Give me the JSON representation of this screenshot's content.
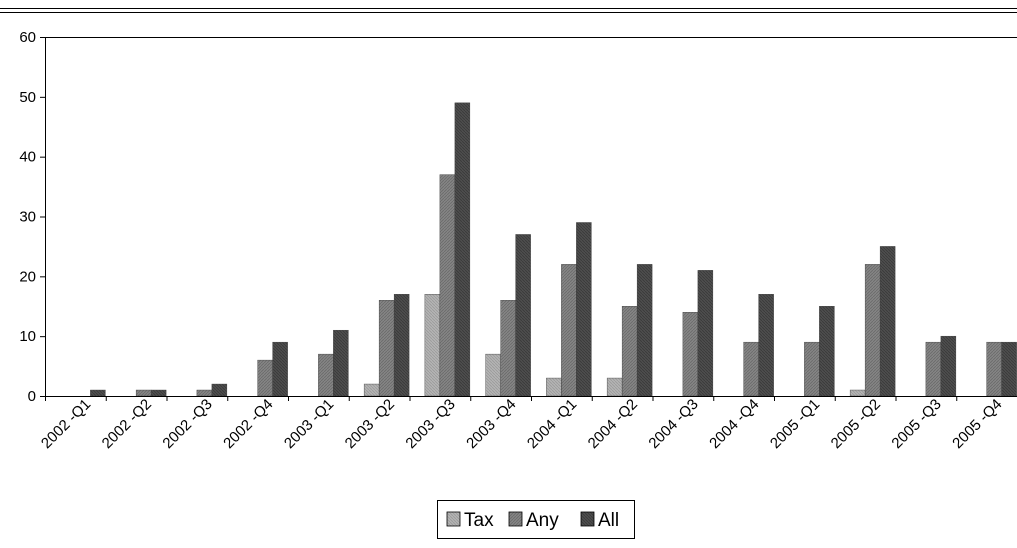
{
  "chart_data": {
    "type": "bar",
    "categories": [
      "2002 -Q1",
      "2002 -Q2",
      "2002 -Q3",
      "2002 -Q4",
      "2003 -Q1",
      "2003 -Q2",
      "2003 -Q3",
      "2003 -Q4",
      "2004 -Q1",
      "2004 -Q2",
      "2004 -Q3",
      "2004 -Q4",
      "2005 -Q1",
      "2005 -Q2",
      "2005 -Q3",
      "2005 -Q4"
    ],
    "series": [
      {
        "name": "Tax",
        "color": "#a9a9a9",
        "values": [
          0,
          0,
          0,
          0,
          0,
          2,
          17,
          7,
          3,
          3,
          0,
          0,
          0,
          1,
          0,
          0
        ]
      },
      {
        "name": "Any",
        "color": "#7a7a7a",
        "values": [
          0,
          1,
          1,
          6,
          7,
          16,
          37,
          16,
          22,
          15,
          14,
          9,
          9,
          22,
          9,
          9
        ]
      },
      {
        "name": "All",
        "color": "#454545",
        "values": [
          1,
          1,
          2,
          9,
          11,
          17,
          49,
          27,
          29,
          22,
          21,
          17,
          15,
          25,
          10,
          9
        ]
      }
    ],
    "y_ticks": [
      "0",
      "10",
      "20",
      "30",
      "40",
      "50",
      "60"
    ],
    "ylim": [
      0,
      60
    ],
    "grid": false,
    "legend_position": "bottom-center"
  }
}
